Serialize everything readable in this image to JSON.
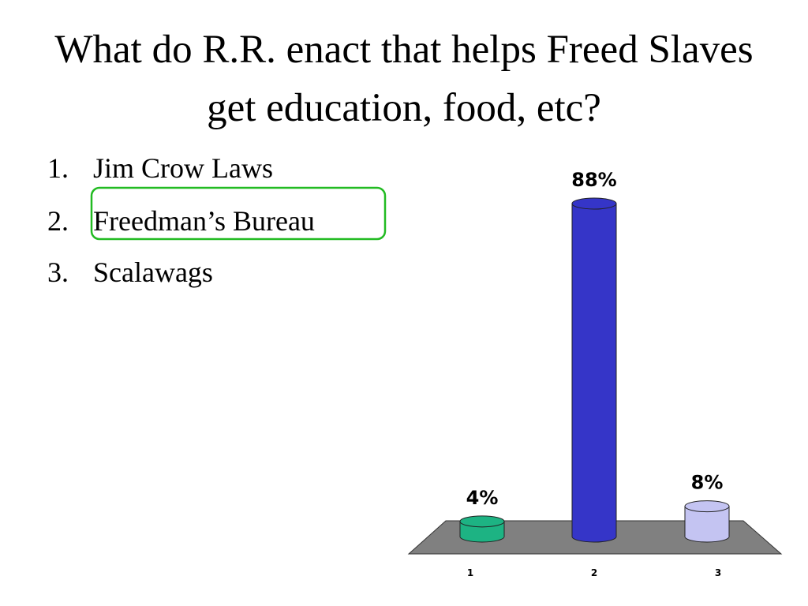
{
  "title": "What do R.R. enact that helps Freed Slaves get education, food, etc?",
  "options": [
    {
      "number": "1.",
      "text": "Jim Crow Laws"
    },
    {
      "number": "2.",
      "text": "Freedman’s Bureau"
    },
    {
      "number": "3.",
      "text": "Scalawags"
    }
  ],
  "chart_data": {
    "type": "bar",
    "categories": [
      "1",
      "2",
      "3"
    ],
    "values": [
      4,
      88,
      8
    ],
    "value_labels": [
      "4%",
      "88%",
      "8%"
    ],
    "colors": [
      "#1db383",
      "#3535c8",
      "#c4c4f2"
    ]
  }
}
